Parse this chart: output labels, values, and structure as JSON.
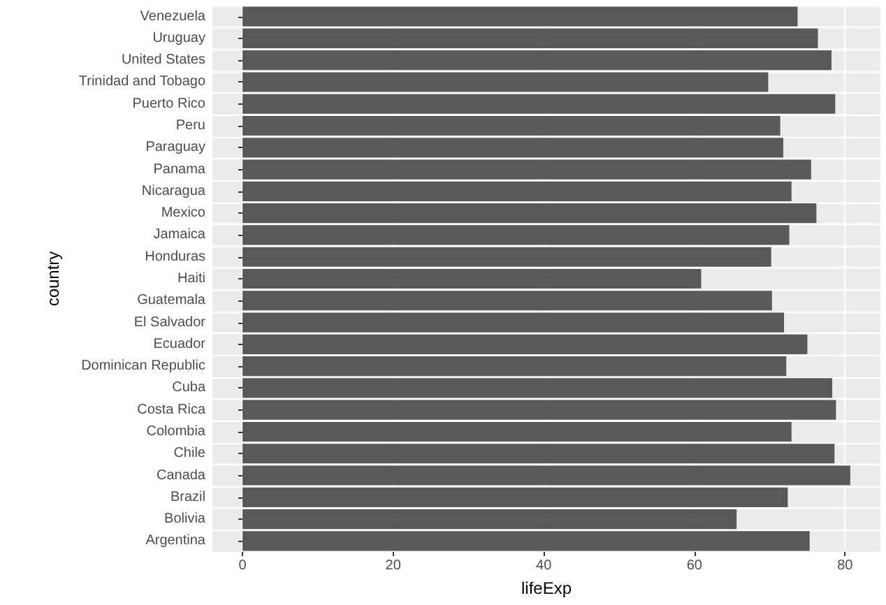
{
  "chart_data": {
    "type": "bar",
    "orientation": "horizontal",
    "xlabel": "lifeExp",
    "ylabel": "country",
    "categories": [
      "Venezuela",
      "Uruguay",
      "United States",
      "Trinidad and Tobago",
      "Puerto Rico",
      "Peru",
      "Paraguay",
      "Panama",
      "Nicaragua",
      "Mexico",
      "Jamaica",
      "Honduras",
      "Haiti",
      "Guatemala",
      "El Salvador",
      "Ecuador",
      "Dominican Republic",
      "Cuba",
      "Costa Rica",
      "Colombia",
      "Chile",
      "Canada",
      "Brazil",
      "Bolivia",
      "Argentina"
    ],
    "values": [
      73.7,
      76.4,
      78.2,
      69.8,
      78.7,
      71.4,
      71.8,
      75.5,
      72.9,
      76.2,
      72.6,
      70.2,
      60.9,
      70.3,
      71.9,
      75.0,
      72.2,
      78.3,
      78.8,
      72.9,
      78.6,
      80.7,
      72.4,
      65.6,
      75.3
    ],
    "color": "#595959",
    "xlim": [
      -4,
      84.7
    ],
    "xticks": [
      0,
      20,
      40,
      60,
      80
    ],
    "grid": true
  }
}
